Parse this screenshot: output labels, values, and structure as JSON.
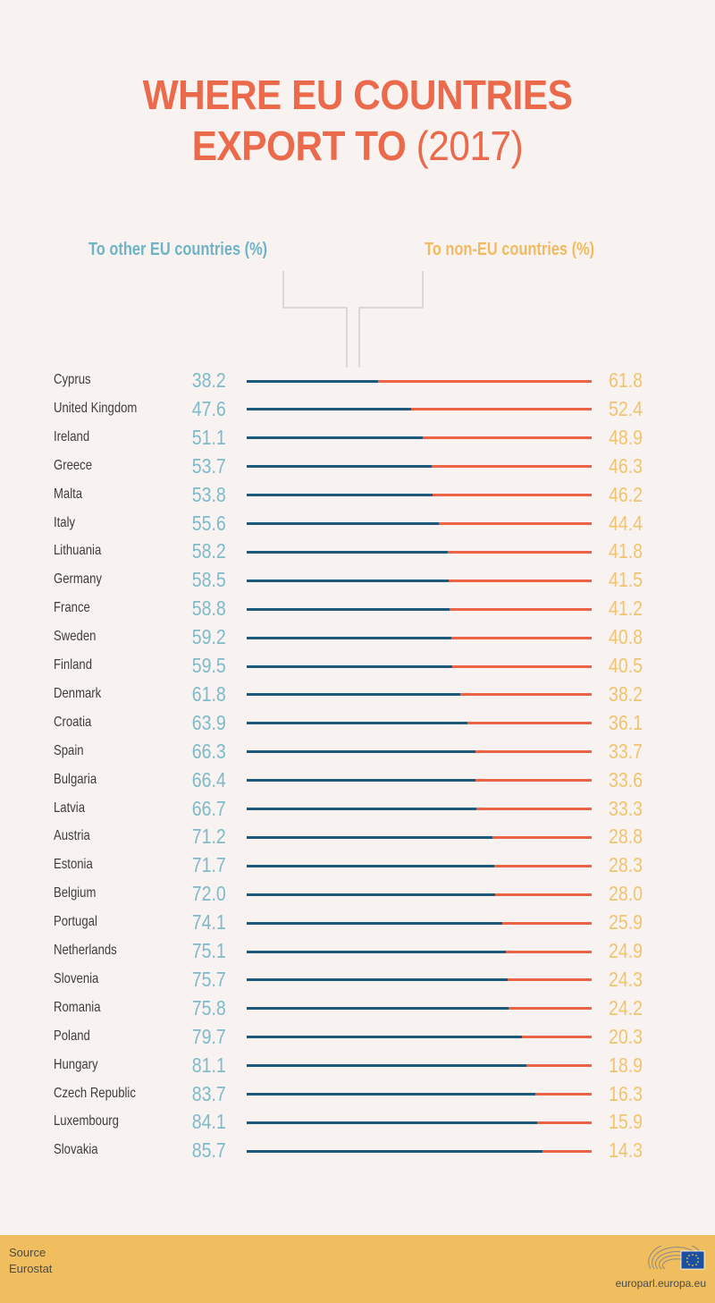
{
  "title": {
    "line1": "WHERE EU COUNTRIES",
    "line2_bold": "EXPORT TO",
    "line2_year": "(2017)"
  },
  "legend": {
    "left": "To other EU countries (%)",
    "right": "To non-EU countries (%)"
  },
  "colors": {
    "eu_bar": "#1f5a7a",
    "noneu_bar": "#ec6445",
    "eu_text": "#7dbacb",
    "noneu_text": "#f2c36f",
    "title": "#ea6a4b",
    "footer": "#f0be5e"
  },
  "footer": {
    "source_label": "Source",
    "source_value": "Eurostat",
    "site": "europarl.europa.eu",
    "logo_icon": "european-parliament-logo"
  },
  "chart_data": {
    "type": "bar",
    "orientation": "horizontal-stacked-100",
    "title": "WHERE EU COUNTRIES EXPORT TO (2017)",
    "xlabel": "",
    "ylabel": "",
    "xlim": [
      0,
      100
    ],
    "series": [
      {
        "name": "To other EU countries (%)",
        "values": [
          38.2,
          47.6,
          51.1,
          53.7,
          53.8,
          55.6,
          58.2,
          58.5,
          58.8,
          59.2,
          59.5,
          61.8,
          63.9,
          66.3,
          66.4,
          66.7,
          71.2,
          71.7,
          72.0,
          74.1,
          75.1,
          75.7,
          75.8,
          79.7,
          81.1,
          83.7,
          84.1,
          85.7
        ]
      },
      {
        "name": "To non-EU countries (%)",
        "values": [
          61.8,
          52.4,
          48.9,
          46.3,
          46.2,
          44.4,
          41.8,
          41.5,
          41.2,
          40.8,
          40.5,
          38.2,
          36.1,
          33.7,
          33.6,
          33.3,
          28.8,
          28.3,
          28.0,
          25.9,
          24.9,
          24.3,
          24.2,
          20.3,
          18.9,
          16.3,
          15.9,
          14.3
        ]
      }
    ],
    "categories": [
      "Cyprus",
      "United Kingdom",
      "Ireland",
      "Greece",
      "Malta",
      "Italy",
      "Lithuania",
      "Germany",
      "France",
      "Sweden",
      "Finland",
      "Denmark",
      "Croatia",
      "Spain",
      "Bulgaria",
      "Latvia",
      "Austria",
      "Estonia",
      "Belgium",
      "Portugal",
      "Netherlands",
      "Slovenia",
      "Romania",
      "Poland",
      "Hungary",
      "Czech Republic",
      "Luxembourg",
      "Slovakia"
    ],
    "eu_labels": [
      "38.2",
      "47.6",
      "51.1",
      "53.7",
      "53.8",
      "55.6",
      "58.2",
      "58.5",
      "58.8",
      "59.2",
      "59.5",
      "61.8",
      "63.9",
      "66.3",
      "66.4",
      "66.7",
      "71.2",
      "71.7",
      "72.0",
      "74.1",
      "75.1",
      "75.7",
      "75.8",
      "79.7",
      "81.1",
      "83.7",
      "84.1",
      "85.7"
    ],
    "noneu_labels": [
      "61.8",
      "52.4",
      "48.9",
      "46.3",
      "46.2",
      "44.4",
      "41.8",
      "41.5",
      "41.2",
      "40.8",
      "40.5",
      "38.2",
      "36.1",
      "33.7",
      "33.6",
      "33.3",
      "28.8",
      "28.3",
      "28.0",
      "25.9",
      "24.9",
      "24.3",
      "24.2",
      "20.3",
      "18.9",
      "16.3",
      "15.9",
      "14.3"
    ],
    "grid": false,
    "legend": "top"
  }
}
